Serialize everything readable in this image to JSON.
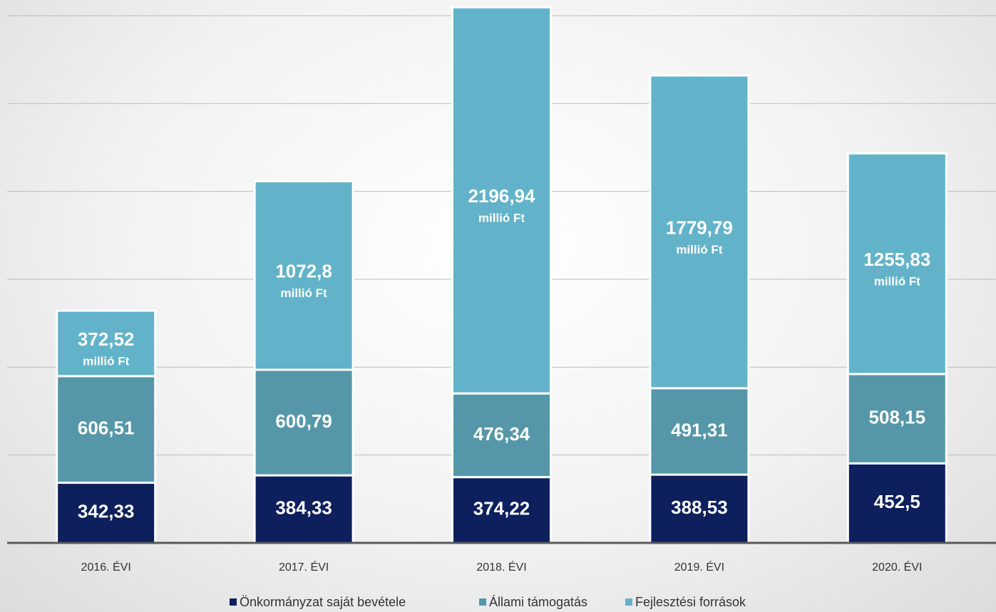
{
  "chart_data": {
    "type": "stacked_bar",
    "categories": [
      "2016. ÉVI",
      "2017. ÉVI",
      "2018. ÉVI",
      "2019. ÉVI",
      "2020. ÉVI"
    ],
    "series": [
      {
        "name": "Önkormányzat saját bevétele",
        "color": "#0d1f5c",
        "values": [
          342.33,
          384.33,
          374.22,
          388.53,
          452.5
        ],
        "value_labels": [
          "342,33",
          "384,33",
          "374,22",
          "388,53",
          "452,5"
        ]
      },
      {
        "name": "Állami támogatás",
        "color": "#5597a8",
        "values": [
          606.51,
          600.79,
          476.34,
          491.31,
          508.15
        ],
        "value_labels": [
          "606,51",
          "600,79",
          "476,34",
          "491,31",
          "508,15"
        ]
      },
      {
        "name": "Fejlesztési források",
        "color": "#62b3c9",
        "values": [
          372.52,
          1072.8,
          2196.94,
          1779.79,
          1255.83
        ],
        "value_labels": [
          "372,52",
          "1072,8",
          "2196,94",
          "1779,79",
          "1255,83"
        ]
      }
    ],
    "unit_label": "millió Ft",
    "ylim": [
      0,
      3089
    ],
    "yticks": [
      0,
      500,
      1000,
      1500,
      2000,
      2500,
      3000
    ],
    "grid": true,
    "legend": "bottom"
  }
}
